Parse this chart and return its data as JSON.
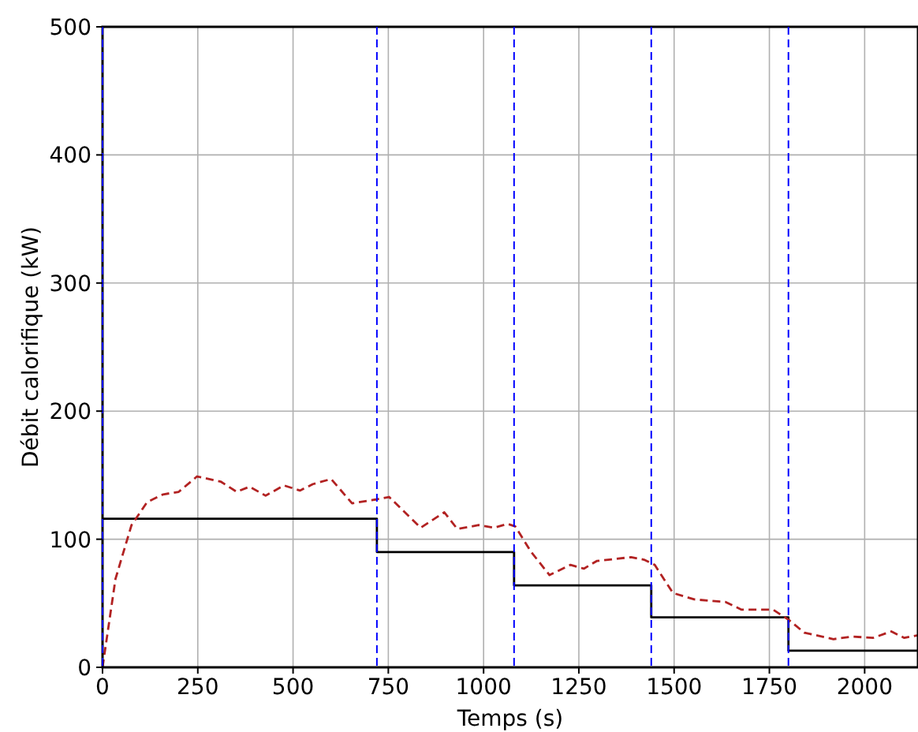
{
  "chart_data": {
    "type": "line",
    "xlabel": "Temps (s)",
    "ylabel": "Débit calorifique (kW)",
    "xlim": [
      0,
      2140
    ],
    "ylim": [
      0,
      500
    ],
    "xticks": [
      0,
      250,
      500,
      750,
      1000,
      1250,
      1500,
      1750,
      2000
    ],
    "yticks": [
      0,
      100,
      200,
      300,
      400,
      500
    ],
    "grid": true,
    "series": [
      {
        "type": "step",
        "color": "#000000",
        "line_style": "solid",
        "x": [
          0,
          720,
          1080,
          1440,
          1800,
          2140
        ],
        "values": [
          116,
          90,
          64,
          39,
          13,
          13
        ]
      },
      {
        "type": "line",
        "color": "#b22222",
        "line_style": "dashed",
        "x": [
          0,
          34,
          76,
          117,
          159,
          200,
          248,
          310,
          352,
          386,
          428,
          476,
          518,
          552,
          600,
          655,
          717,
          752,
          835,
          897,
          931,
          987,
          1028,
          1063,
          1083,
          1125,
          1173,
          1228,
          1263,
          1297,
          1387,
          1421,
          1449,
          1497,
          1553,
          1635,
          1677,
          1760,
          1801,
          1842,
          1918,
          1967,
          2022,
          2070,
          2104,
          2140
        ],
        "values": [
          0,
          69,
          111,
          129,
          135,
          137,
          149,
          145,
          137,
          141,
          134,
          142,
          138,
          143,
          147,
          128,
          131,
          133,
          109,
          121,
          108,
          111,
          109,
          112,
          110,
          90,
          72,
          80,
          77,
          83,
          86,
          84,
          80,
          58,
          53,
          51,
          45,
          45,
          37,
          27,
          22,
          24,
          23,
          28,
          23,
          25
        ]
      }
    ],
    "ref_lines": [
      {
        "axis": "x",
        "value": 0,
        "color": "#0000ff",
        "line_style": "dashed"
      },
      {
        "axis": "x",
        "value": 720,
        "color": "#0000ff",
        "line_style": "dashed"
      },
      {
        "axis": "x",
        "value": 1080,
        "color": "#0000ff",
        "line_style": "dashed"
      },
      {
        "axis": "x",
        "value": 1440,
        "color": "#0000ff",
        "line_style": "dashed"
      },
      {
        "axis": "x",
        "value": 1800,
        "color": "#0000ff",
        "line_style": "dashed"
      }
    ]
  }
}
